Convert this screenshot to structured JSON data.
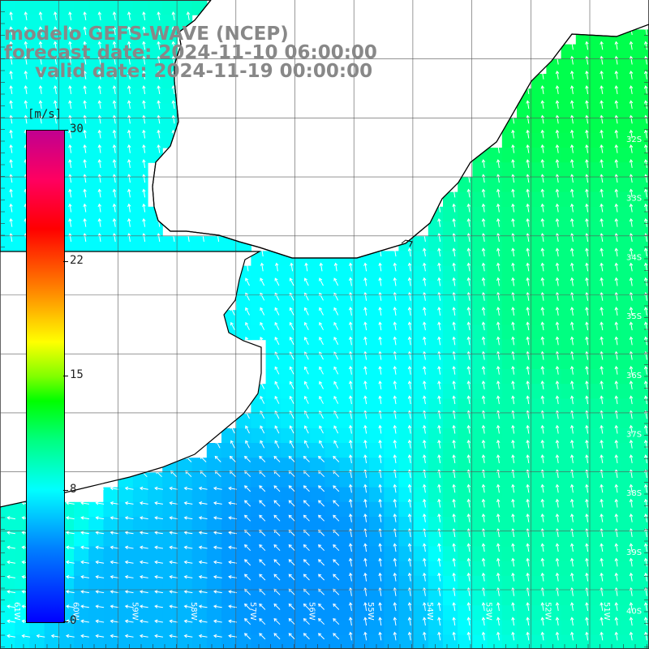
{
  "title": {
    "model": "modelo GEFS-WAVE (NCEP)",
    "forecast": "forecast date: 2024-11-10 06:00:00",
    "valid": "valid date: 2024-11-19 00:00:00"
  },
  "colorbar": {
    "unit": "[m/s]",
    "ticks": [
      "30",
      "22",
      "15",
      "8",
      "0"
    ],
    "tick_values": [
      30,
      22,
      15,
      8,
      0
    ]
  },
  "lat_labels": [
    "32S",
    "33S",
    "34S",
    "35S",
    "36S",
    "37S",
    "38S",
    "39S",
    "40S"
  ],
  "lon_labels": [
    "61W",
    "60W",
    "59W",
    "58W",
    "57W",
    "56W",
    "55W",
    "54W",
    "53W",
    "52W",
    "51W"
  ],
  "chart_data": {
    "type": "heatmap",
    "variable": "wind speed",
    "unit": "m/s",
    "range": [
      0,
      30
    ],
    "extent": {
      "lon": [
        -62,
        -51
      ],
      "lat": [
        -41,
        -30
      ]
    },
    "speed_samples": [
      {
        "lon": -52,
        "lat": -31,
        "speed": 12
      },
      {
        "lon": -52,
        "lat": -35,
        "speed": 11
      },
      {
        "lon": -53,
        "lat": -38,
        "speed": 10
      },
      {
        "lon": -56,
        "lat": -36,
        "speed": 8
      },
      {
        "lon": -57,
        "lat": -39.5,
        "speed": 5
      },
      {
        "lon": -60,
        "lat": -40,
        "speed": 6
      },
      {
        "lon": -61.5,
        "lat": -39,
        "speed": 9
      }
    ],
    "wind_direction": "mostly from the south, turning from the east near the southwest coast"
  }
}
